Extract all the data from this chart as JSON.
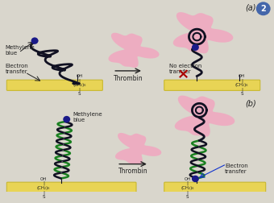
{
  "background_color": "#d9d6cc",
  "electrode_color": "#e8d455",
  "electrode_stroke": "#c8b830",
  "thrombin_color": "#f0a8c0",
  "aptamer_dark": "#111122",
  "aptamer_green": "#1a8020",
  "methylene_blue_color": "#1a1a88",
  "arrow_color": "#222222",
  "text_color": "#222222",
  "label_a": "(a)",
  "label_b": "(b)",
  "label_2": "2",
  "circle2_color": "#4466aa"
}
